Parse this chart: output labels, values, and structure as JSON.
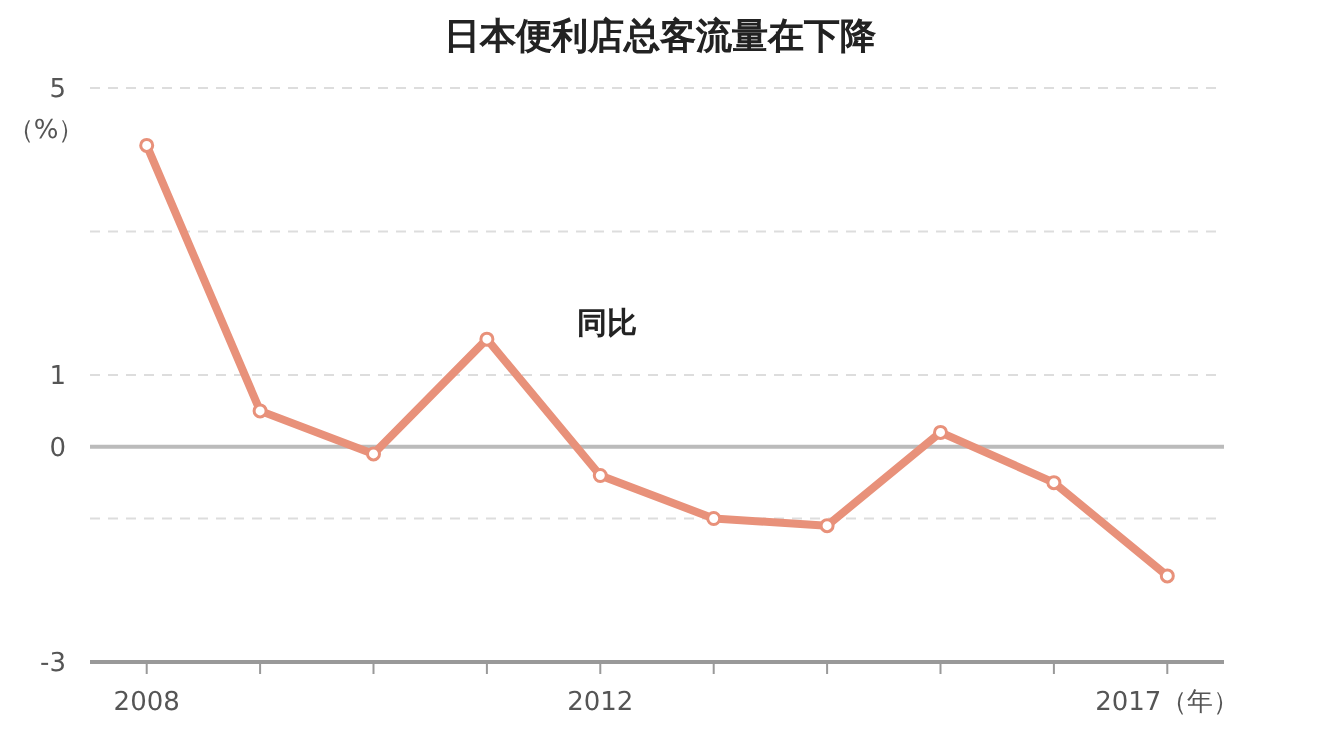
{
  "chart_data": {
    "type": "line",
    "title": "日本便利店总客流量在下降",
    "ylabel": "（%）",
    "x": [
      2008,
      2009,
      2010,
      2011,
      2012,
      2013,
      2014,
      2015,
      2016,
      2017
    ],
    "series": [
      {
        "name": "同比",
        "color": "#e8917a",
        "values": [
          4.2,
          0.5,
          -0.1,
          1.5,
          -0.4,
          -1.0,
          -1.1,
          0.2,
          -0.5,
          -1.8
        ]
      }
    ],
    "xlim": [
      2007.5,
      2017.5
    ],
    "xticks": [
      2008,
      {
        "value": 2009,
        "label": null
      },
      {
        "value": 2010,
        "label": null
      },
      {
        "value": 2011,
        "label": null
      },
      2012,
      {
        "value": 2013,
        "label": null
      },
      {
        "value": 2014,
        "label": null
      },
      {
        "value": 2015,
        "label": null
      },
      {
        "value": 2016,
        "label": null
      },
      {
        "value": 2017,
        "label": "2017（年）"
      }
    ],
    "ylim": [
      -3,
      5
    ],
    "yticks": [
      -3,
      {
        "value": -1,
        "label": null
      },
      0,
      1,
      {
        "value": 3,
        "label": null
      },
      5
    ],
    "grid": "y",
    "marker": "circle",
    "line_style": "solid"
  }
}
